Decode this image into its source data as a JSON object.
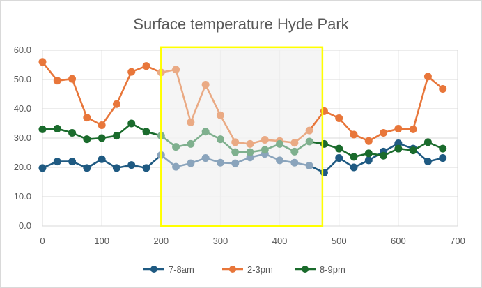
{
  "chart_data": {
    "type": "line",
    "title": "Surface temperature Hyde Park",
    "xlim": [
      0,
      700
    ],
    "ylim": [
      0,
      60
    ],
    "x_ticks": [
      0,
      100,
      200,
      300,
      400,
      500,
      600,
      700
    ],
    "y_ticks": [
      "0.0",
      "10.0",
      "20.0",
      "30.0",
      "40.0",
      "50.0",
      "60.0"
    ],
    "grid": true,
    "legend_position": "bottom",
    "highlight": {
      "x_range": [
        200,
        472
      ],
      "y_range": [
        0,
        61
      ],
      "border_color": "#ffff00",
      "fill_color": "#f2f2f2"
    },
    "x": [
      0,
      25,
      50,
      75,
      100,
      125,
      150,
      175,
      200,
      225,
      250,
      275,
      300,
      325,
      350,
      375,
      400,
      425,
      450,
      475,
      500,
      525,
      550,
      575,
      600,
      625,
      650,
      675
    ],
    "series": [
      {
        "name": "7-8am",
        "color": "#1f5a82",
        "faded_color": "#8aa4bc",
        "values": [
          19.8,
          22.0,
          22.0,
          19.8,
          22.8,
          19.8,
          20.8,
          19.8,
          24.2,
          20.2,
          21.4,
          23.2,
          21.6,
          21.4,
          23.4,
          24.6,
          22.4,
          21.6,
          20.6,
          18.2,
          23.2,
          20.0,
          22.4,
          25.4,
          28.2,
          26.4,
          22.0,
          23.2
        ]
      },
      {
        "name": "2-3pm",
        "color": "#e8763a",
        "faded_color": "#eaaa84",
        "values": [
          56.0,
          49.6,
          50.2,
          37.0,
          34.4,
          41.6,
          52.6,
          54.6,
          52.4,
          53.4,
          35.4,
          48.2,
          37.8,
          28.6,
          28.0,
          29.4,
          29.0,
          28.4,
          32.6,
          39.2,
          36.8,
          31.2,
          29.0,
          31.8,
          33.2,
          33.0,
          51.0,
          46.8
        ]
      },
      {
        "name": "8-9pm",
        "color": "#1a6b2c",
        "faded_color": "#7fb08e",
        "values": [
          33.0,
          33.2,
          31.8,
          29.6,
          30.0,
          30.8,
          35.0,
          32.2,
          30.8,
          27.0,
          28.0,
          32.2,
          29.6,
          25.2,
          25.2,
          26.0,
          28.0,
          25.4,
          28.8,
          28.0,
          26.4,
          23.6,
          24.8,
          24.0,
          26.4,
          25.8,
          28.6,
          26.4
        ]
      }
    ]
  }
}
